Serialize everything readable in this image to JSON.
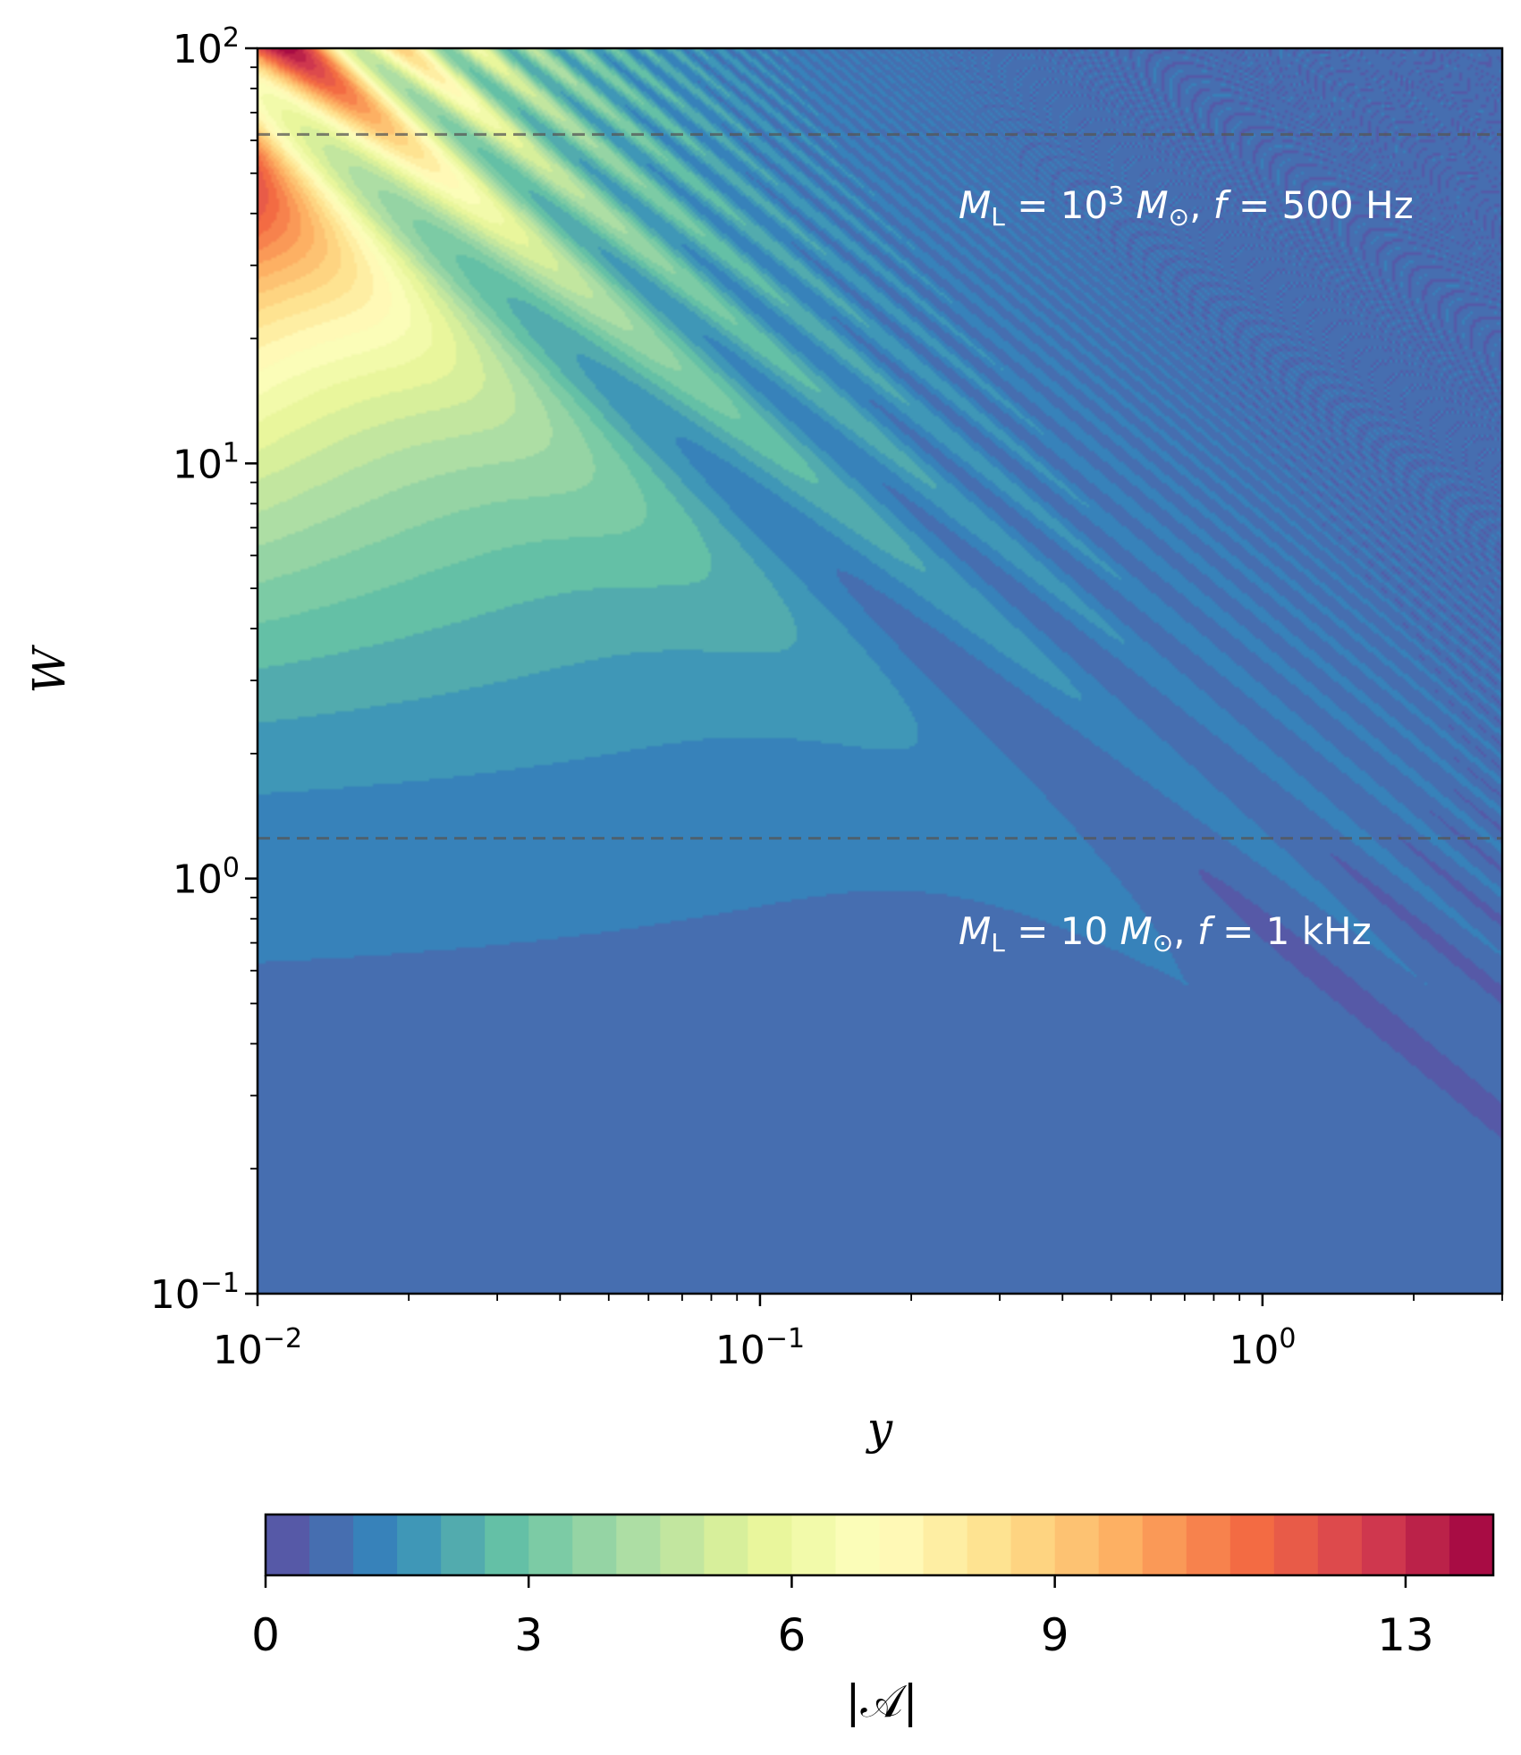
{
  "chart_data": {
    "type": "heatmap",
    "title": "",
    "xlabel": "y",
    "ylabel": "W",
    "x_scale": "log",
    "y_scale": "log",
    "xlim": [
      0.01,
      3.0
    ],
    "ylim": [
      0.1,
      100
    ],
    "x_ticks": [
      {
        "base": "10",
        "exp": "−2",
        "value": 0.01
      },
      {
        "base": "10",
        "exp": "−1",
        "value": 0.1
      },
      {
        "base": "10",
        "exp": "0",
        "value": 1
      }
    ],
    "y_ticks": [
      {
        "base": "10",
        "exp": "−1",
        "value": 0.1
      },
      {
        "base": "10",
        "exp": "0",
        "value": 1
      },
      {
        "base": "10",
        "exp": "1",
        "value": 10
      },
      {
        "base": "10",
        "exp": "2",
        "value": 100
      }
    ],
    "colorbar": {
      "label": "|𝒜|",
      "colormap": "Spectral_r",
      "range": [
        0,
        14
      ],
      "levels": 28,
      "ticks": [
        "0",
        "3",
        "6",
        "9",
        "13"
      ],
      "tick_values": [
        0,
        3,
        6,
        9,
        13
      ]
    },
    "reference_lines": [
      {
        "W": 62,
        "style": "dashed",
        "label_parts": {
          "m": "M",
          "sub": "L",
          "eq": " = 10",
          "exp": "3",
          "mass": " M",
          "sun": "⊙",
          "sep": ",  ",
          "f": "f",
          "feq": " = 500 Hz"
        }
      },
      {
        "W": 1.25,
        "style": "dashed",
        "label_parts": {
          "m": "M",
          "sub": "L",
          "eq": " = 10 ",
          "exp": "",
          "mass": "M",
          "sun": "⊙",
          "sep": ",  ",
          "f": "f",
          "feq": " = 1 kHz"
        }
      }
    ],
    "field_features": {
      "max_value_near": {
        "y": 0.01,
        "W": 100,
        "value": 14
      },
      "low_W_plateau_value": 1.2,
      "fringe_pattern": "interference fringes along lines of constant W·y increasing in density toward large y"
    }
  }
}
